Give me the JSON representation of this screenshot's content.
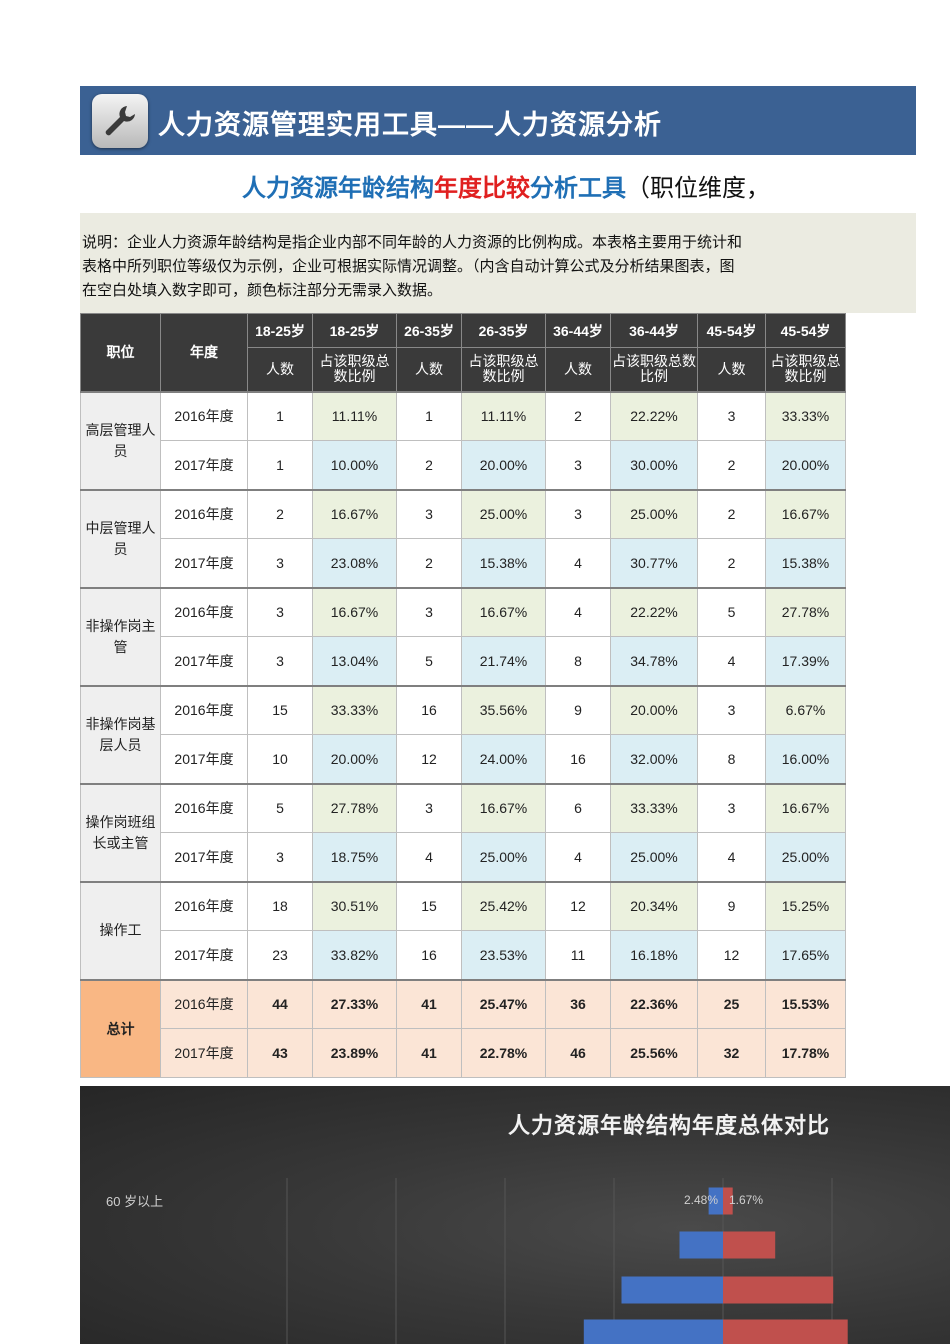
{
  "header": {
    "title": "人力资源管理实用工具——人力资源分析",
    "icon": "wrench-icon"
  },
  "subtitle": {
    "part1": "人力资源年龄结构",
    "part2": "年度比较",
    "part3": "分析工具",
    "part4": "（职位维度，"
  },
  "note": {
    "lines": [
      "说明：企业人力资源年龄结构是指企业内部不同年龄的人力资源的比例构成。本表格主要用于统计和",
      "表格中所列职位等级仅为示例，企业可根据实际情况调整。（内含自动计算公式及分析结果图表，图",
      "在空白处填入数字即可，颜色标注部分无需录入数据。"
    ]
  },
  "table": {
    "col_position": "职位",
    "col_year": "年度",
    "age_groups": [
      "18-25岁",
      "26-35岁",
      "36-44岁",
      "45-54岁"
    ],
    "sub_count": "人数",
    "sub_ratio": "占该职级总数比例",
    "groups": [
      {
        "name": "高层管理人员",
        "rows": [
          {
            "year": "2016年度",
            "cells": [
              "1",
              "11.11%",
              "1",
              "11.11%",
              "2",
              "22.22%",
              "3",
              "33.33%"
            ]
          },
          {
            "year": "2017年度",
            "cells": [
              "1",
              "10.00%",
              "2",
              "20.00%",
              "3",
              "30.00%",
              "2",
              "20.00%"
            ]
          }
        ]
      },
      {
        "name": "中层管理人员",
        "rows": [
          {
            "year": "2016年度",
            "cells": [
              "2",
              "16.67%",
              "3",
              "25.00%",
              "3",
              "25.00%",
              "2",
              "16.67%"
            ]
          },
          {
            "year": "2017年度",
            "cells": [
              "3",
              "23.08%",
              "2",
              "15.38%",
              "4",
              "30.77%",
              "2",
              "15.38%"
            ]
          }
        ]
      },
      {
        "name": "非操作岗主管",
        "rows": [
          {
            "year": "2016年度",
            "cells": [
              "3",
              "16.67%",
              "3",
              "16.67%",
              "4",
              "22.22%",
              "5",
              "27.78%"
            ]
          },
          {
            "year": "2017年度",
            "cells": [
              "3",
              "13.04%",
              "5",
              "21.74%",
              "8",
              "34.78%",
              "4",
              "17.39%"
            ]
          }
        ]
      },
      {
        "name": "非操作岗基层人员",
        "rows": [
          {
            "year": "2016年度",
            "cells": [
              "15",
              "33.33%",
              "16",
              "35.56%",
              "9",
              "20.00%",
              "3",
              "6.67%"
            ]
          },
          {
            "year": "2017年度",
            "cells": [
              "10",
              "20.00%",
              "12",
              "24.00%",
              "16",
              "32.00%",
              "8",
              "16.00%"
            ]
          }
        ]
      },
      {
        "name": "操作岗班组长或主管",
        "rows": [
          {
            "year": "2016年度",
            "cells": [
              "5",
              "27.78%",
              "3",
              "16.67%",
              "6",
              "33.33%",
              "3",
              "16.67%"
            ]
          },
          {
            "year": "2017年度",
            "cells": [
              "3",
              "18.75%",
              "4",
              "25.00%",
              "4",
              "25.00%",
              "4",
              "25.00%"
            ]
          }
        ]
      },
      {
        "name": "操作工",
        "rows": [
          {
            "year": "2016年度",
            "cells": [
              "18",
              "30.51%",
              "15",
              "25.42%",
              "12",
              "20.34%",
              "9",
              "15.25%"
            ]
          },
          {
            "year": "2017年度",
            "cells": [
              "23",
              "33.82%",
              "16",
              "23.53%",
              "11",
              "16.18%",
              "12",
              "17.65%"
            ]
          }
        ]
      }
    ],
    "total": {
      "name": "总计",
      "rows": [
        {
          "year": "2016年度",
          "cells": [
            "44",
            "27.33%",
            "41",
            "25.47%",
            "36",
            "22.36%",
            "25",
            "15.53%"
          ]
        },
        {
          "year": "2017年度",
          "cells": [
            "43",
            "23.89%",
            "41",
            "22.78%",
            "46",
            "25.56%",
            "32",
            "17.78%"
          ]
        }
      ]
    }
  },
  "colors": {
    "header_bg": "#3b6193",
    "ratio_2016": "#ebf1de",
    "ratio_2017": "#dbeef4",
    "total_label": "#f9b784",
    "total_cells": "#fbe5d6",
    "series_2016": "#4472c4",
    "series_2017": "#c0504d"
  },
  "chart_data": {
    "type": "bar",
    "title": "人力资源年龄结构年度总体对比",
    "orientation": "horizontal-pyramid",
    "categories": [
      "60岁以上"
    ],
    "category_labels_visible": [
      "60 岁以上"
    ],
    "series": [
      {
        "values": [
          2.48
        ],
        "labels": [
          "2.48%"
        ],
        "color": "#4472c4",
        "side": "left"
      },
      {
        "values": [
          1.67
        ],
        "labels": [
          "1.67%"
        ],
        "color": "#c0504d",
        "side": "right"
      }
    ],
    "partial_rows_visible": [
      {
        "left": 7.5,
        "right": 9.0
      },
      {
        "left": 17.5,
        "right": 19.0
      },
      {
        "left": 24.0,
        "right": 21.5
      }
    ],
    "grid": true,
    "legend": "none"
  }
}
